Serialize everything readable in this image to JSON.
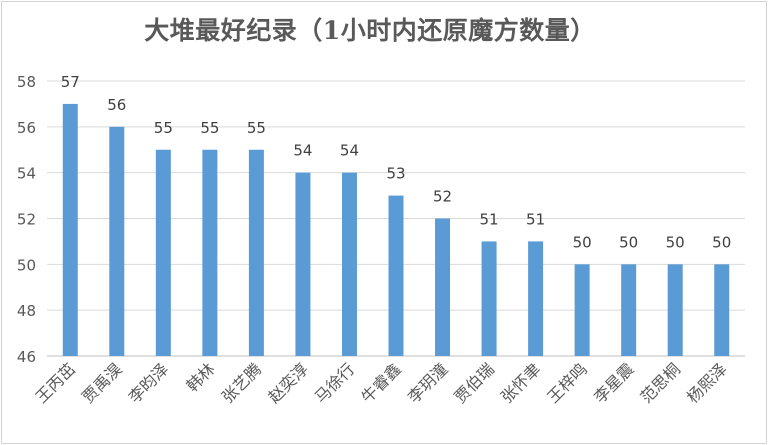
{
  "chart_data": {
    "type": "bar",
    "title": "大堆最好纪录（1小时内还原魔方数量）",
    "xlabel": "",
    "ylabel": "",
    "ylim": [
      46,
      58
    ],
    "yticks": [
      46,
      48,
      50,
      52,
      54,
      56,
      58
    ],
    "grid": true,
    "legend": "none",
    "bar_color": "#5b9bd5",
    "categories": [
      "王丙茁",
      "贾禹淏",
      "李昀泽",
      "韩林",
      "张艺腾",
      "赵奕淳",
      "马徐行",
      "牛睿鑫",
      "李玥潼",
      "贾伯瑞",
      "张怀聿",
      "王梓鸣",
      "李星震",
      "范思桐",
      "杨熙泽"
    ],
    "values": [
      57,
      56,
      55,
      55,
      55,
      54,
      54,
      53,
      52,
      51,
      51,
      50,
      50,
      50,
      50
    ]
  }
}
